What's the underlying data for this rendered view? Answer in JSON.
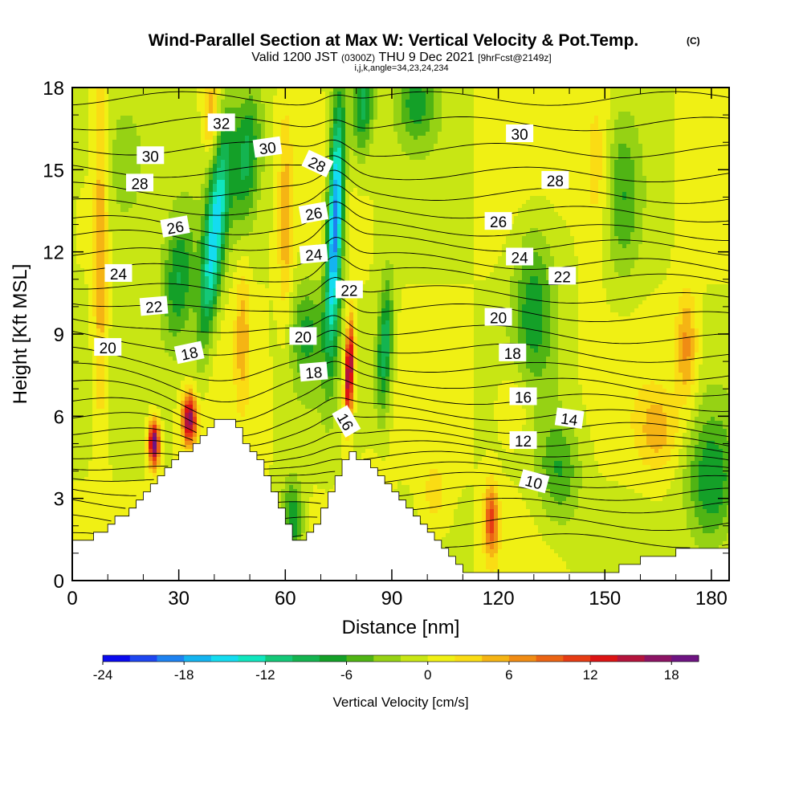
{
  "chart_data": {
    "type": "heatmap",
    "title": "Wind-Parallel Section at Max W: Vertical Velocity & Pot.Temp.",
    "title_badge": "(C)",
    "subtitle_parts": [
      "Valid 1200 JST",
      "(0300Z)",
      "THU 9 Dec 2021",
      "[9hrFcst@2149z]"
    ],
    "subtitle2": "i,j,k,angle=34,23,24,234",
    "xlabel": "Distance [nm]",
    "ylabel": "Height [Kft MSL]",
    "xlim": [
      0,
      185
    ],
    "ylim": [
      0,
      18
    ],
    "x_ticks": [
      0,
      30,
      60,
      90,
      120,
      150,
      180
    ],
    "y_ticks": [
      0,
      3,
      6,
      9,
      12,
      15,
      18
    ],
    "colorbar": {
      "label": "Vertical Velocity [cm/s]",
      "range": [
        -24,
        20
      ],
      "step": 2,
      "ticks": [
        -24,
        -18,
        -12,
        -6,
        0,
        6,
        12,
        18
      ],
      "colors": [
        "#0a0aee",
        "#1e46f0",
        "#1e82f0",
        "#14b4f0",
        "#14dcf0",
        "#10e6be",
        "#14c878",
        "#14b450",
        "#14a028",
        "#50b414",
        "#96d214",
        "#c8e614",
        "#f0f014",
        "#fadc14",
        "#f5b414",
        "#f08c14",
        "#eb6414",
        "#e63c14",
        "#dc1414",
        "#b4143c",
        "#8c1464",
        "#6e1482"
      ]
    },
    "terrain": [
      [
        0,
        1.6
      ],
      [
        5,
        1.6
      ],
      [
        9,
        2.0
      ],
      [
        13,
        2.3
      ],
      [
        16,
        2.7
      ],
      [
        19,
        3.1
      ],
      [
        22,
        3.5
      ],
      [
        25,
        3.9
      ],
      [
        28,
        4.3
      ],
      [
        31,
        4.7
      ],
      [
        34,
        5.1
      ],
      [
        37,
        5.5
      ],
      [
        40,
        5.8
      ],
      [
        44,
        5.8
      ],
      [
        47,
        5.3
      ],
      [
        51,
        4.6
      ],
      [
        54,
        3.9
      ],
      [
        57,
        3.0
      ],
      [
        60,
        2.0
      ],
      [
        61,
        1.6
      ],
      [
        63,
        1.3
      ],
      [
        66,
        1.7
      ],
      [
        69,
        2.2
      ],
      [
        72,
        3.3
      ],
      [
        75,
        4.3
      ],
      [
        78,
        4.6
      ],
      [
        82,
        4.4
      ],
      [
        85,
        4.0
      ],
      [
        88,
        3.5
      ],
      [
        91,
        3.0
      ],
      [
        94,
        2.6
      ],
      [
        97,
        2.2
      ],
      [
        100,
        1.8
      ],
      [
        103,
        1.4
      ],
      [
        107,
        0.9
      ],
      [
        110,
        0.4
      ],
      [
        120,
        0.4
      ],
      [
        130,
        0.3
      ],
      [
        152,
        0.3
      ],
      [
        155,
        0.6
      ],
      [
        165,
        0.9
      ],
      [
        175,
        1.2
      ],
      [
        185,
        1.3
      ]
    ],
    "wind_cells": [
      {
        "x": 74,
        "y": 13,
        "amp": -20,
        "sx": 2.2,
        "sy": 4.5,
        "tilt": 0.26
      },
      {
        "x": 40,
        "y": 12.5,
        "amp": -15,
        "sx": 3,
        "sy": 3.8,
        "tilt": 0.75
      },
      {
        "x": 49,
        "y": 15.5,
        "amp": -8,
        "sx": 4,
        "sy": 2.5,
        "tilt": 0.5
      },
      {
        "x": 30,
        "y": 11,
        "amp": -8,
        "sx": 4.5,
        "sy": 2.5,
        "tilt": 0.3
      },
      {
        "x": 88,
        "y": 8.5,
        "amp": -10,
        "sx": 2.2,
        "sy": 2.5,
        "tilt": 0.3
      },
      {
        "x": 82,
        "y": 17.5,
        "amp": -9,
        "sx": 3,
        "sy": 2,
        "tilt": 0.4
      },
      {
        "x": 97,
        "y": 17.5,
        "amp": -7,
        "sx": 6,
        "sy": 1.5,
        "tilt": 0
      },
      {
        "x": 130,
        "y": 10,
        "amp": -7,
        "sx": 6,
        "sy": 3,
        "tilt": 0
      },
      {
        "x": 62,
        "y": 2.2,
        "amp": -8,
        "sx": 3,
        "sy": 1.5,
        "tilt": 0
      },
      {
        "x": 66,
        "y": 9,
        "amp": -6,
        "sx": 5,
        "sy": 2,
        "tilt": 0
      },
      {
        "x": 180,
        "y": 3.5,
        "amp": -8,
        "sx": 7,
        "sy": 2.5,
        "tilt": 0
      },
      {
        "x": 137,
        "y": 4,
        "amp": -6,
        "sx": 6,
        "sy": 2,
        "tilt": 0
      },
      {
        "x": 155,
        "y": 14,
        "amp": -5,
        "sx": 5,
        "sy": 3,
        "tilt": 0
      },
      {
        "x": 15,
        "y": 15,
        "amp": -4,
        "sx": 8,
        "sy": 3,
        "tilt": 0
      },
      {
        "x": 23,
        "y": 5,
        "amp": 20,
        "sx": 1.5,
        "sy": 0.8,
        "tilt": 0
      },
      {
        "x": 33,
        "y": 5.9,
        "amp": 18,
        "sx": 2,
        "sy": 0.9,
        "tilt": 0
      },
      {
        "x": 78,
        "y": 7.6,
        "amp": 19,
        "sx": 1.2,
        "sy": 1.8,
        "tilt": 0.2
      },
      {
        "x": 118,
        "y": 2.2,
        "amp": 11,
        "sx": 2,
        "sy": 1.3,
        "tilt": 0
      },
      {
        "x": 173,
        "y": 8.5,
        "amp": 7,
        "sx": 3,
        "sy": 2,
        "tilt": 0
      },
      {
        "x": 8,
        "y": 12,
        "amp": 6,
        "sx": 2,
        "sy": 7,
        "tilt": 0
      },
      {
        "x": 48,
        "y": 9,
        "amp": 5,
        "sx": 2,
        "sy": 2.5,
        "tilt": 0
      },
      {
        "x": 39,
        "y": 17,
        "amp": 6,
        "sx": 2,
        "sy": 1.5,
        "tilt": 0
      },
      {
        "x": 60,
        "y": 13,
        "amp": 5,
        "sx": 2,
        "sy": 4,
        "tilt": 0
      },
      {
        "x": 148,
        "y": 15,
        "amp": 4,
        "sx": 4,
        "sy": 3,
        "tilt": 0
      },
      {
        "x": 165,
        "y": 5.5,
        "amp": 5,
        "sx": 6,
        "sy": 1.5,
        "tilt": 0
      },
      {
        "x": 85,
        "y": 3.2,
        "amp": 4,
        "sx": 3,
        "sy": 1,
        "tilt": 0
      },
      {
        "x": 102,
        "y": 3,
        "amp": 3,
        "sx": 4,
        "sy": 1.5,
        "tilt": 0
      },
      {
        "x": 125,
        "y": 6.5,
        "amp": 3,
        "sx": 5,
        "sy": 1.5,
        "tilt": 0
      }
    ],
    "theta_levels": [
      6,
      7,
      8,
      9,
      10,
      11,
      12,
      13,
      14,
      15,
      16,
      17,
      18,
      19,
      20,
      21,
      22,
      23,
      24,
      25,
      26,
      27,
      28,
      29,
      30,
      31,
      32,
      33
    ],
    "theta_base_heights": [
      [
        6,
        1.5
      ],
      [
        7,
        2.2
      ],
      [
        8,
        2.9
      ],
      [
        9,
        3.4
      ],
      [
        10,
        3.9
      ],
      [
        11,
        4.3
      ],
      [
        12,
        4.7
      ],
      [
        13,
        5.1
      ],
      [
        14,
        5.5
      ],
      [
        15,
        6.0
      ],
      [
        16,
        6.5
      ],
      [
        17,
        7.1
      ],
      [
        18,
        7.7
      ],
      [
        19,
        8.3
      ],
      [
        20,
        9.0
      ],
      [
        21,
        9.6
      ],
      [
        22,
        10.3
      ],
      [
        23,
        10.9
      ],
      [
        24,
        11.5
      ],
      [
        25,
        12.0
      ],
      [
        26,
        12.6
      ],
      [
        27,
        13.1
      ],
      [
        28,
        13.7
      ],
      [
        29,
        14.3
      ],
      [
        30,
        15.0
      ],
      [
        31,
        15.8
      ],
      [
        32,
        16.7
      ],
      [
        33,
        17.6
      ]
    ],
    "contour_labels": [
      {
        "text": "32",
        "x": 42,
        "y": 16.7,
        "rot": 0
      },
      {
        "text": "30",
        "x": 22,
        "y": 15.5,
        "rot": 0
      },
      {
        "text": "30",
        "x": 55,
        "y": 15.8,
        "rot": -8
      },
      {
        "text": "30",
        "x": 126,
        "y": 16.3,
        "rot": 0
      },
      {
        "text": "28",
        "x": 19,
        "y": 14.5,
        "rot": 0
      },
      {
        "text": "28",
        "x": 69,
        "y": 15.2,
        "rot": 25
      },
      {
        "text": "28",
        "x": 136,
        "y": 14.6,
        "rot": 0
      },
      {
        "text": "26",
        "x": 29,
        "y": 12.9,
        "rot": -10
      },
      {
        "text": "26",
        "x": 68,
        "y": 13.4,
        "rot": -10
      },
      {
        "text": "26",
        "x": 120,
        "y": 13.1,
        "rot": 0
      },
      {
        "text": "24",
        "x": 13,
        "y": 11.2,
        "rot": 0
      },
      {
        "text": "24",
        "x": 68,
        "y": 11.9,
        "rot": -5
      },
      {
        "text": "24",
        "x": 126,
        "y": 11.8,
        "rot": 0
      },
      {
        "text": "22",
        "x": 23,
        "y": 10.0,
        "rot": -5
      },
      {
        "text": "22",
        "x": 78,
        "y": 10.6,
        "rot": 0
      },
      {
        "text": "22",
        "x": 138,
        "y": 11.1,
        "rot": 0
      },
      {
        "text": "20",
        "x": 10,
        "y": 8.5,
        "rot": 0
      },
      {
        "text": "20",
        "x": 65,
        "y": 8.9,
        "rot": 0
      },
      {
        "text": "20",
        "x": 120,
        "y": 9.6,
        "rot": 0
      },
      {
        "text": "18",
        "x": 33,
        "y": 8.3,
        "rot": -12
      },
      {
        "text": "18",
        "x": 68,
        "y": 7.6,
        "rot": -5
      },
      {
        "text": "18",
        "x": 124,
        "y": 8.3,
        "rot": 0
      },
      {
        "text": "16",
        "x": 77,
        "y": 5.8,
        "rot": 60
      },
      {
        "text": "16",
        "x": 127,
        "y": 6.7,
        "rot": 0
      },
      {
        "text": "14",
        "x": 140,
        "y": 5.9,
        "rot": 8
      },
      {
        "text": "12",
        "x": 127,
        "y": 5.1,
        "rot": 0
      },
      {
        "text": "10",
        "x": 130,
        "y": 3.6,
        "rot": 15
      }
    ]
  }
}
